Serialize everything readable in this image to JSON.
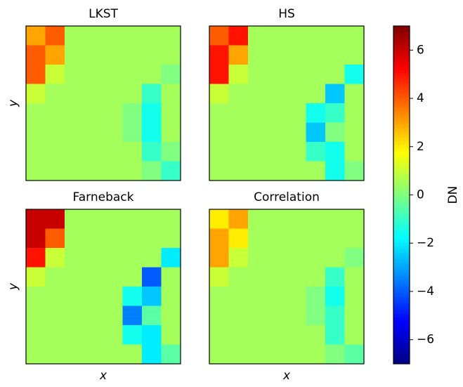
{
  "chart_data": [
    {
      "type": "heatmap",
      "title": "LKST",
      "ylabel": "y",
      "z": [
        [
          3,
          4,
          0.5,
          0.5,
          0.5,
          0.5,
          0.5,
          0.5
        ],
        [
          4,
          3,
          0.5,
          0.5,
          0.5,
          0.5,
          0.5,
          0.5
        ],
        [
          4,
          1,
          0.5,
          0.5,
          0.5,
          0.5,
          0.5,
          0
        ],
        [
          1,
          0.5,
          0.5,
          0.5,
          0.5,
          0.5,
          -1,
          0.5
        ],
        [
          0.5,
          0.5,
          0.5,
          0.5,
          0.5,
          0,
          -1.5,
          0.5
        ],
        [
          0.5,
          0.5,
          0.5,
          0.5,
          0.5,
          0,
          -1.5,
          0.5
        ],
        [
          0.5,
          0.5,
          0.5,
          0.5,
          0.5,
          0.5,
          -1,
          0
        ],
        [
          0.5,
          0.5,
          0.5,
          0.5,
          0.5,
          0.5,
          0,
          -1
        ]
      ]
    },
    {
      "type": "heatmap",
      "title": "HS",
      "z": [
        [
          4,
          5,
          0.5,
          0.5,
          0.5,
          0.5,
          0.5,
          0.5
        ],
        [
          5,
          3,
          0.5,
          0.5,
          0.5,
          0.5,
          0.5,
          0.5
        ],
        [
          5,
          1,
          0.5,
          0.5,
          0.5,
          0.5,
          0.5,
          -1.5
        ],
        [
          1,
          0.5,
          0.5,
          0.5,
          0.5,
          0.5,
          -2.5,
          0.5
        ],
        [
          0.5,
          0.5,
          0.5,
          0.5,
          0.5,
          -1.5,
          -1,
          0.5
        ],
        [
          0.5,
          0.5,
          0.5,
          0.5,
          0.5,
          -2.5,
          0,
          0.5
        ],
        [
          0.5,
          0.5,
          0.5,
          0.5,
          0.5,
          -1,
          -1.5,
          0.5
        ],
        [
          0.5,
          0.5,
          0.5,
          0.5,
          0.5,
          0.5,
          -1.5,
          0
        ]
      ]
    },
    {
      "type": "heatmap",
      "title": "Farneback",
      "ylabel": "y",
      "xlabel": "x",
      "z": [
        [
          6,
          6,
          0.5,
          0.5,
          0.5,
          0.5,
          0.5,
          0.5
        ],
        [
          6,
          4,
          0.5,
          0.5,
          0.5,
          0.5,
          0.5,
          0.5
        ],
        [
          5,
          1,
          0.5,
          0.5,
          0.5,
          0.5,
          0.5,
          -2
        ],
        [
          1,
          0.5,
          0.5,
          0.5,
          0.5,
          0.5,
          -4,
          0.5
        ],
        [
          0.5,
          0.5,
          0.5,
          0.5,
          0.5,
          -1.5,
          -2.5,
          0.5
        ],
        [
          0.5,
          0.5,
          0.5,
          0.5,
          0.5,
          -3.5,
          -0.5,
          0.5
        ],
        [
          0.5,
          0.5,
          0.5,
          0.5,
          0.5,
          -1.5,
          -2,
          0.5
        ],
        [
          0.5,
          0.5,
          0.5,
          0.5,
          0.5,
          0.5,
          -2,
          -0.5
        ]
      ]
    },
    {
      "type": "heatmap",
      "title": "Correlation",
      "xlabel": "x",
      "z": [
        [
          2,
          3,
          0.5,
          0.5,
          0.5,
          0.5,
          0.5,
          0.5
        ],
        [
          3,
          2,
          0.5,
          0.5,
          0.5,
          0.5,
          0.5,
          0.5
        ],
        [
          3,
          1,
          0.5,
          0.5,
          0.5,
          0.5,
          0.5,
          0
        ],
        [
          1,
          0.5,
          0.5,
          0.5,
          0.5,
          0.5,
          -1,
          0.5
        ],
        [
          0.5,
          0.5,
          0.5,
          0.5,
          0.5,
          0,
          -1.5,
          0.5
        ],
        [
          0.5,
          0.5,
          0.5,
          0.5,
          0.5,
          0,
          -1,
          0.5
        ],
        [
          0.5,
          0.5,
          0.5,
          0.5,
          0.5,
          0.5,
          -1,
          0.5
        ],
        [
          0.5,
          0.5,
          0.5,
          0.5,
          0.5,
          0.5,
          0,
          -0.5
        ]
      ]
    }
  ],
  "colorbar": {
    "label": "DN",
    "colormap": "jet",
    "clim": [
      -7,
      7
    ],
    "ticks": [
      6,
      4,
      2,
      0,
      {
        "value": -2,
        "label": "−2"
      },
      {
        "value": -4,
        "label": "−4"
      },
      {
        "value": -6,
        "label": "−6"
      }
    ]
  }
}
